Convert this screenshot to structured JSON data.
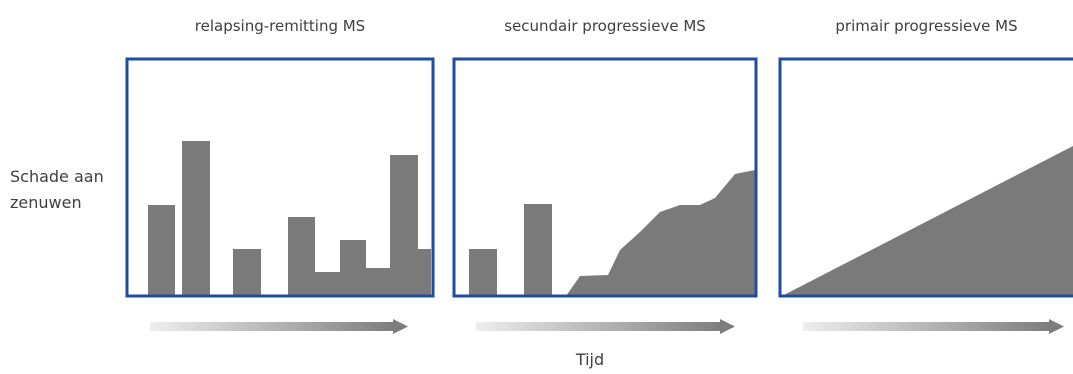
{
  "colors": {
    "frame": "#1f4e9a",
    "fill": "#7a7a7a",
    "arrow_start": "#eeeeee",
    "arrow_end": "#7d7d7d"
  },
  "panels": [
    {
      "title": "relapsing-remitting MS"
    },
    {
      "title": "secundair progressieve MS"
    },
    {
      "title": "primair progressieve MS"
    }
  ],
  "y_axis_label": "Schade aan zenuwen",
  "x_axis_label": "Tijd"
}
